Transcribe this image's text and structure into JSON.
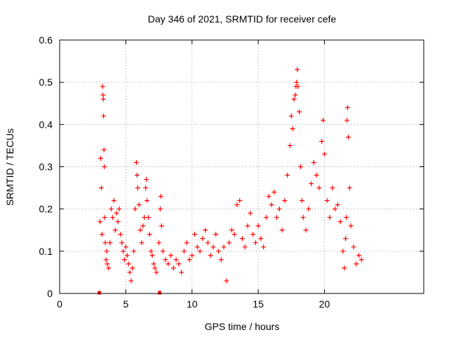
{
  "chart_data": {
    "type": "scatter",
    "title": "Day 346 of 2021, SRMTID for receiver cefe",
    "xlabel": "GPS time / hours",
    "ylabel": "SRMTID / TECUs",
    "xlim": [
      0,
      27.5
    ],
    "ylim": [
      0,
      0.6
    ],
    "x_ticks": [
      0,
      5,
      10,
      15,
      20
    ],
    "y_ticks": [
      0,
      0.1,
      0.2,
      0.3,
      0.4,
      0.5,
      0.6
    ],
    "x_tick_labels": [
      "0",
      "5",
      "10",
      "15",
      "20"
    ],
    "y_tick_labels": [
      "0",
      "0.1",
      "0.2",
      "0.3",
      "0.4",
      "0.5",
      "0.6"
    ],
    "grid": true,
    "marker": "+",
    "color": "#ff0000",
    "series": [
      {
        "name": "SRMTID",
        "points": [
          [
            3.05,
            0.17
          ],
          [
            3.1,
            0.32
          ],
          [
            3.15,
            0.25
          ],
          [
            3.2,
            0.14
          ],
          [
            3.25,
            0.49
          ],
          [
            3.28,
            0.47
          ],
          [
            3.3,
            0.46
          ],
          [
            3.32,
            0.42
          ],
          [
            3.35,
            0.34
          ],
          [
            3.38,
            0.3
          ],
          [
            3.4,
            0.18
          ],
          [
            3.45,
            0.12
          ],
          [
            3.5,
            0.08
          ],
          [
            3.55,
            0.1
          ],
          [
            3.6,
            0.07
          ],
          [
            3.7,
            0.06
          ],
          [
            3.8,
            0.12
          ],
          [
            3.9,
            0.2
          ],
          [
            4.0,
            0.18
          ],
          [
            4.1,
            0.22
          ],
          [
            4.2,
            0.15
          ],
          [
            4.3,
            0.19
          ],
          [
            4.4,
            0.17
          ],
          [
            4.5,
            0.2
          ],
          [
            4.6,
            0.14
          ],
          [
            4.7,
            0.12
          ],
          [
            4.8,
            0.1
          ],
          [
            4.9,
            0.08
          ],
          [
            5.0,
            0.11
          ],
          [
            5.1,
            0.09
          ],
          [
            5.2,
            0.07
          ],
          [
            5.3,
            0.05
          ],
          [
            5.4,
            0.03
          ],
          [
            5.5,
            0.06
          ],
          [
            5.6,
            0.1
          ],
          [
            5.7,
            0.2
          ],
          [
            5.8,
            0.31
          ],
          [
            5.85,
            0.28
          ],
          [
            5.9,
            0.25
          ],
          [
            6.0,
            0.21
          ],
          [
            6.1,
            0.15
          ],
          [
            6.2,
            0.12
          ],
          [
            6.3,
            0.16
          ],
          [
            6.4,
            0.18
          ],
          [
            6.5,
            0.25
          ],
          [
            6.55,
            0.27
          ],
          [
            6.6,
            0.22
          ],
          [
            6.7,
            0.18
          ],
          [
            6.8,
            0.14
          ],
          [
            6.9,
            0.1
          ],
          [
            7.0,
            0.09
          ],
          [
            7.1,
            0.07
          ],
          [
            7.2,
            0.06
          ],
          [
            7.3,
            0.05
          ],
          [
            7.5,
            0.12
          ],
          [
            7.6,
            0.2
          ],
          [
            7.65,
            0.23
          ],
          [
            7.7,
            0.16
          ],
          [
            7.8,
            0.1
          ],
          [
            8.0,
            0.08
          ],
          [
            8.2,
            0.07
          ],
          [
            8.4,
            0.09
          ],
          [
            8.6,
            0.06
          ],
          [
            8.8,
            0.08
          ],
          [
            9.0,
            0.07
          ],
          [
            9.2,
            0.05
          ],
          [
            9.4,
            0.1
          ],
          [
            9.6,
            0.12
          ],
          [
            9.8,
            0.08
          ],
          [
            10.0,
            0.09
          ],
          [
            10.2,
            0.14
          ],
          [
            10.4,
            0.11
          ],
          [
            10.6,
            0.1
          ],
          [
            10.8,
            0.13
          ],
          [
            11.0,
            0.15
          ],
          [
            11.2,
            0.12
          ],
          [
            11.4,
            0.09
          ],
          [
            11.6,
            0.11
          ],
          [
            11.8,
            0.14
          ],
          [
            12.0,
            0.1
          ],
          [
            12.2,
            0.08
          ],
          [
            12.4,
            0.11
          ],
          [
            12.6,
            0.03
          ],
          [
            12.8,
            0.12
          ],
          [
            13.0,
            0.15
          ],
          [
            13.2,
            0.14
          ],
          [
            13.4,
            0.21
          ],
          [
            13.6,
            0.22
          ],
          [
            13.8,
            0.13
          ],
          [
            14.0,
            0.11
          ],
          [
            14.2,
            0.16
          ],
          [
            14.4,
            0.19
          ],
          [
            14.6,
            0.14
          ],
          [
            14.8,
            0.12
          ],
          [
            15.0,
            0.16
          ],
          [
            15.2,
            0.13
          ],
          [
            15.4,
            0.11
          ],
          [
            15.6,
            0.18
          ],
          [
            15.8,
            0.23
          ],
          [
            16.0,
            0.21
          ],
          [
            16.2,
            0.24
          ],
          [
            16.4,
            0.18
          ],
          [
            16.6,
            0.2
          ],
          [
            16.8,
            0.15
          ],
          [
            17.0,
            0.22
          ],
          [
            17.2,
            0.28
          ],
          [
            17.4,
            0.35
          ],
          [
            17.5,
            0.42
          ],
          [
            17.6,
            0.39
          ],
          [
            17.7,
            0.46
          ],
          [
            17.8,
            0.47
          ],
          [
            17.85,
            0.49
          ],
          [
            17.9,
            0.5
          ],
          [
            17.95,
            0.53
          ],
          [
            18.0,
            0.49
          ],
          [
            18.1,
            0.43
          ],
          [
            18.2,
            0.3
          ],
          [
            18.3,
            0.22
          ],
          [
            18.4,
            0.18
          ],
          [
            18.6,
            0.15
          ],
          [
            18.8,
            0.2
          ],
          [
            19.0,
            0.26
          ],
          [
            19.2,
            0.31
          ],
          [
            19.4,
            0.28
          ],
          [
            19.6,
            0.25
          ],
          [
            19.8,
            0.36
          ],
          [
            19.9,
            0.41
          ],
          [
            20.0,
            0.33
          ],
          [
            20.2,
            0.22
          ],
          [
            20.4,
            0.18
          ],
          [
            20.6,
            0.25
          ],
          [
            20.8,
            0.2
          ],
          [
            21.0,
            0.21
          ],
          [
            21.2,
            0.17
          ],
          [
            21.4,
            0.1
          ],
          [
            21.5,
            0.06
          ],
          [
            21.6,
            0.13
          ],
          [
            21.65,
            0.18
          ],
          [
            21.7,
            0.41
          ],
          [
            21.75,
            0.44
          ],
          [
            21.8,
            0.37
          ],
          [
            21.9,
            0.25
          ],
          [
            22.0,
            0.16
          ],
          [
            22.2,
            0.11
          ],
          [
            22.4,
            0.07
          ],
          [
            22.6,
            0.09
          ],
          [
            22.8,
            0.08
          ]
        ]
      }
    ],
    "gap_markers_x": [
      3.0,
      7.55
    ]
  }
}
